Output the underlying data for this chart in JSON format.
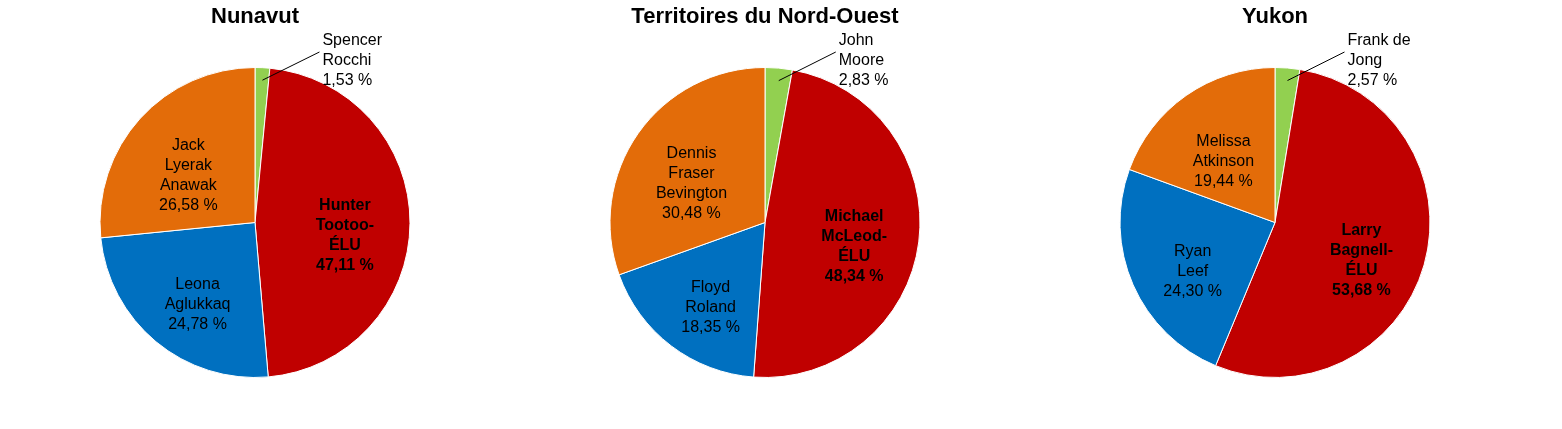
{
  "chart_data": [
    {
      "type": "pie",
      "title": "Nunavut",
      "categories": [
        "Spencer Rocchi",
        "Hunter Tootoo-ÉLU",
        "Leona Aglukkaq",
        "Jack Lyerak Anawak"
      ],
      "values": [
        1.53,
        47.11,
        24.78,
        26.58
      ],
      "colors": [
        "#92d050",
        "#c00000",
        "#0070c0",
        "#e36c09"
      ],
      "value_labels": [
        "1,53 %",
        "47,11 %",
        "24,78 %",
        "26,58 %"
      ]
    },
    {
      "type": "pie",
      "title": "Territoires du Nord-Ouest",
      "categories": [
        "John Moore",
        "Michael McLeod-ÉLU",
        "Floyd Roland",
        "Dennis Fraser Bevington"
      ],
      "values": [
        2.83,
        48.34,
        18.35,
        30.48
      ],
      "colors": [
        "#92d050",
        "#c00000",
        "#0070c0",
        "#e36c09"
      ],
      "value_labels": [
        "2,83 %",
        "48,34 %",
        "18,35 %",
        "30,48 %"
      ]
    },
    {
      "type": "pie",
      "title": "Yukon",
      "categories": [
        "Frank de Jong",
        "Larry Bagnell-ÉLU",
        "Ryan Leef",
        "Melissa Atkinson"
      ],
      "values": [
        2.57,
        53.68,
        24.3,
        19.44
      ],
      "colors": [
        "#92d050",
        "#c00000",
        "#0070c0",
        "#e36c09"
      ],
      "value_labels": [
        "2,57 %",
        "53,68 %",
        "24,30 %",
        "19,44 %"
      ]
    }
  ]
}
